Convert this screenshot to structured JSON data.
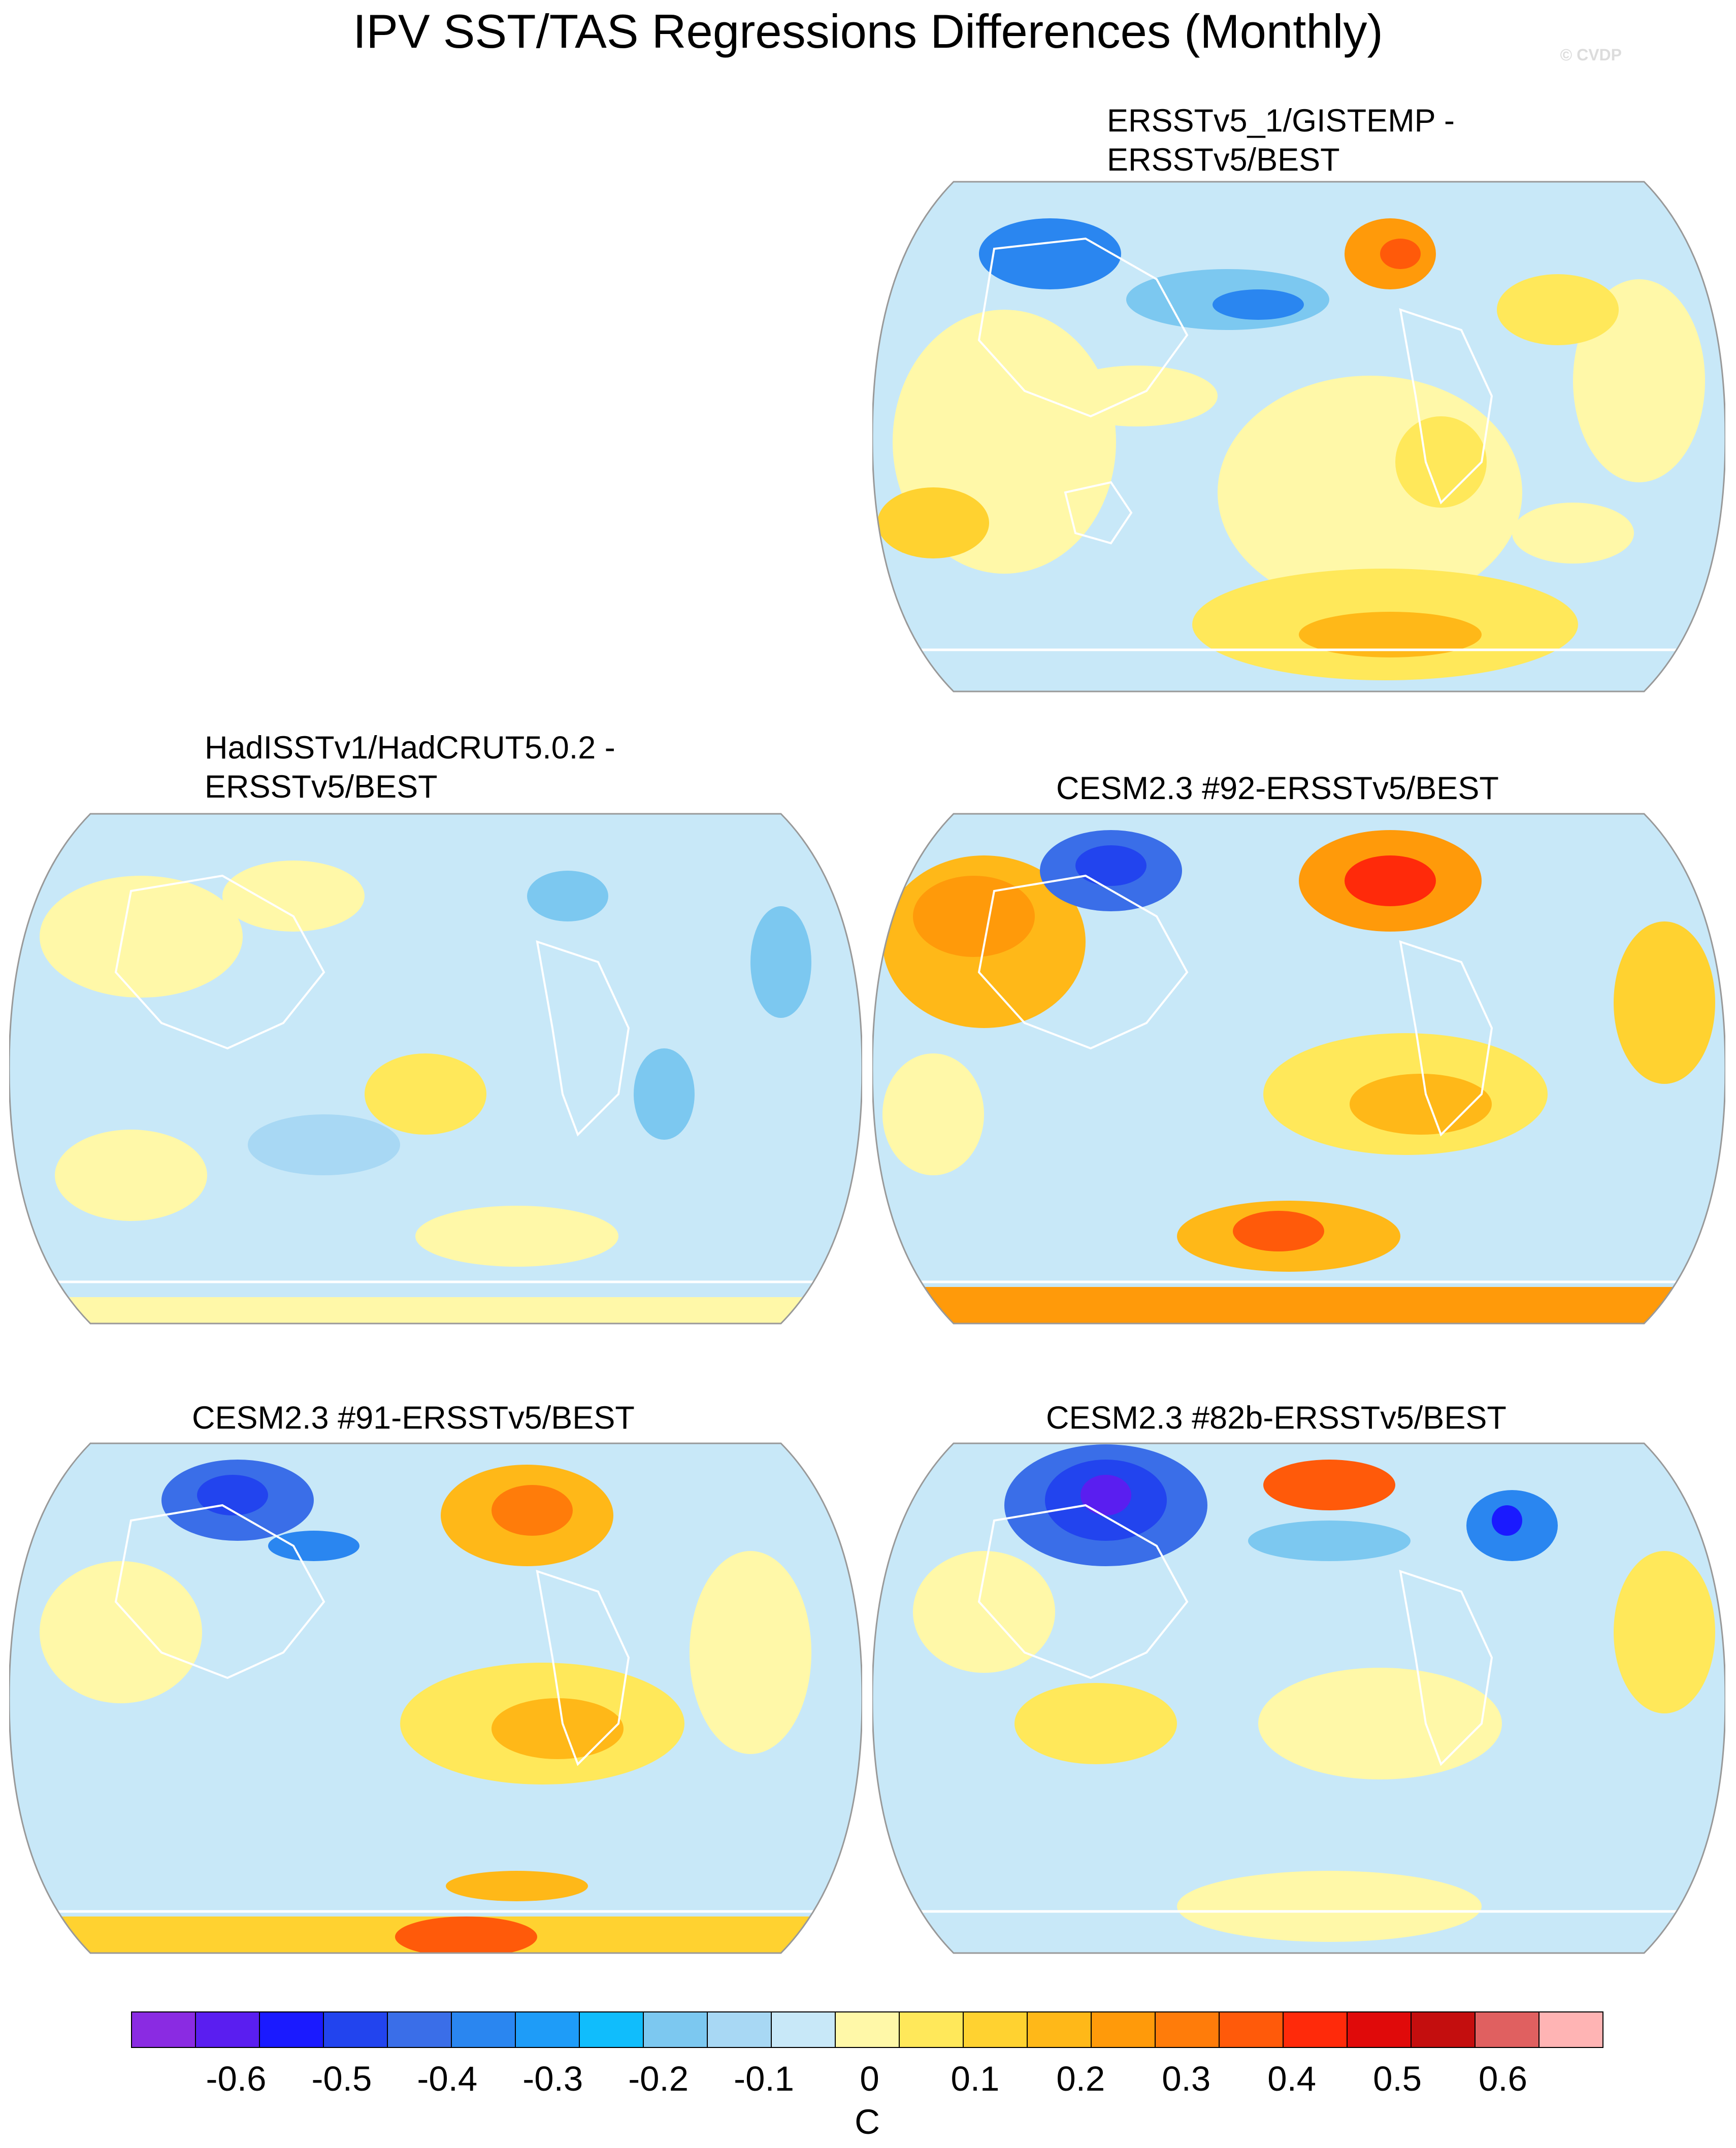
{
  "title": "IPV SST/TAS Regressions Differences (Monthly)",
  "watermark": "© CVDP",
  "panels": [
    {
      "title": "ERSSTv5_1/GISTEMP -\nERSSTv5/BEST"
    },
    {
      "title": "HadISSTv1/HadCRUT5.0.2 -\nERSSTv5/BEST"
    },
    {
      "title": "CESM2.3 #92-ERSSTv5/BEST"
    },
    {
      "title": "CESM2.3 #91-ERSSTv5/BEST"
    },
    {
      "title": "CESM2.3 #82b-ERSSTv5/BEST"
    }
  ],
  "colorbar": {
    "unit": "C",
    "tick_labels": [
      "-0.6",
      "-0.5",
      "-0.4",
      "-0.3",
      "-0.2",
      "-0.1",
      "0",
      "0.1",
      "0.2",
      "0.3",
      "0.4",
      "0.5",
      "0.6"
    ],
    "colors": [
      "#8a2be2",
      "#5a1ef0",
      "#1a1aff",
      "#2244ee",
      "#3a6ee8",
      "#2a86f0",
      "#1e9cf8",
      "#10bdfc",
      "#7cc8f0",
      "#a8d8f4",
      "#c8e8f8",
      "#fff8a8",
      "#ffe85a",
      "#ffd230",
      "#ffb818",
      "#ff9a0a",
      "#ff7c0a",
      "#ff5a0a",
      "#ff2a0a",
      "#e00a0a",
      "#c40e0e",
      "#e06060",
      "#ffb4b4"
    ]
  }
}
